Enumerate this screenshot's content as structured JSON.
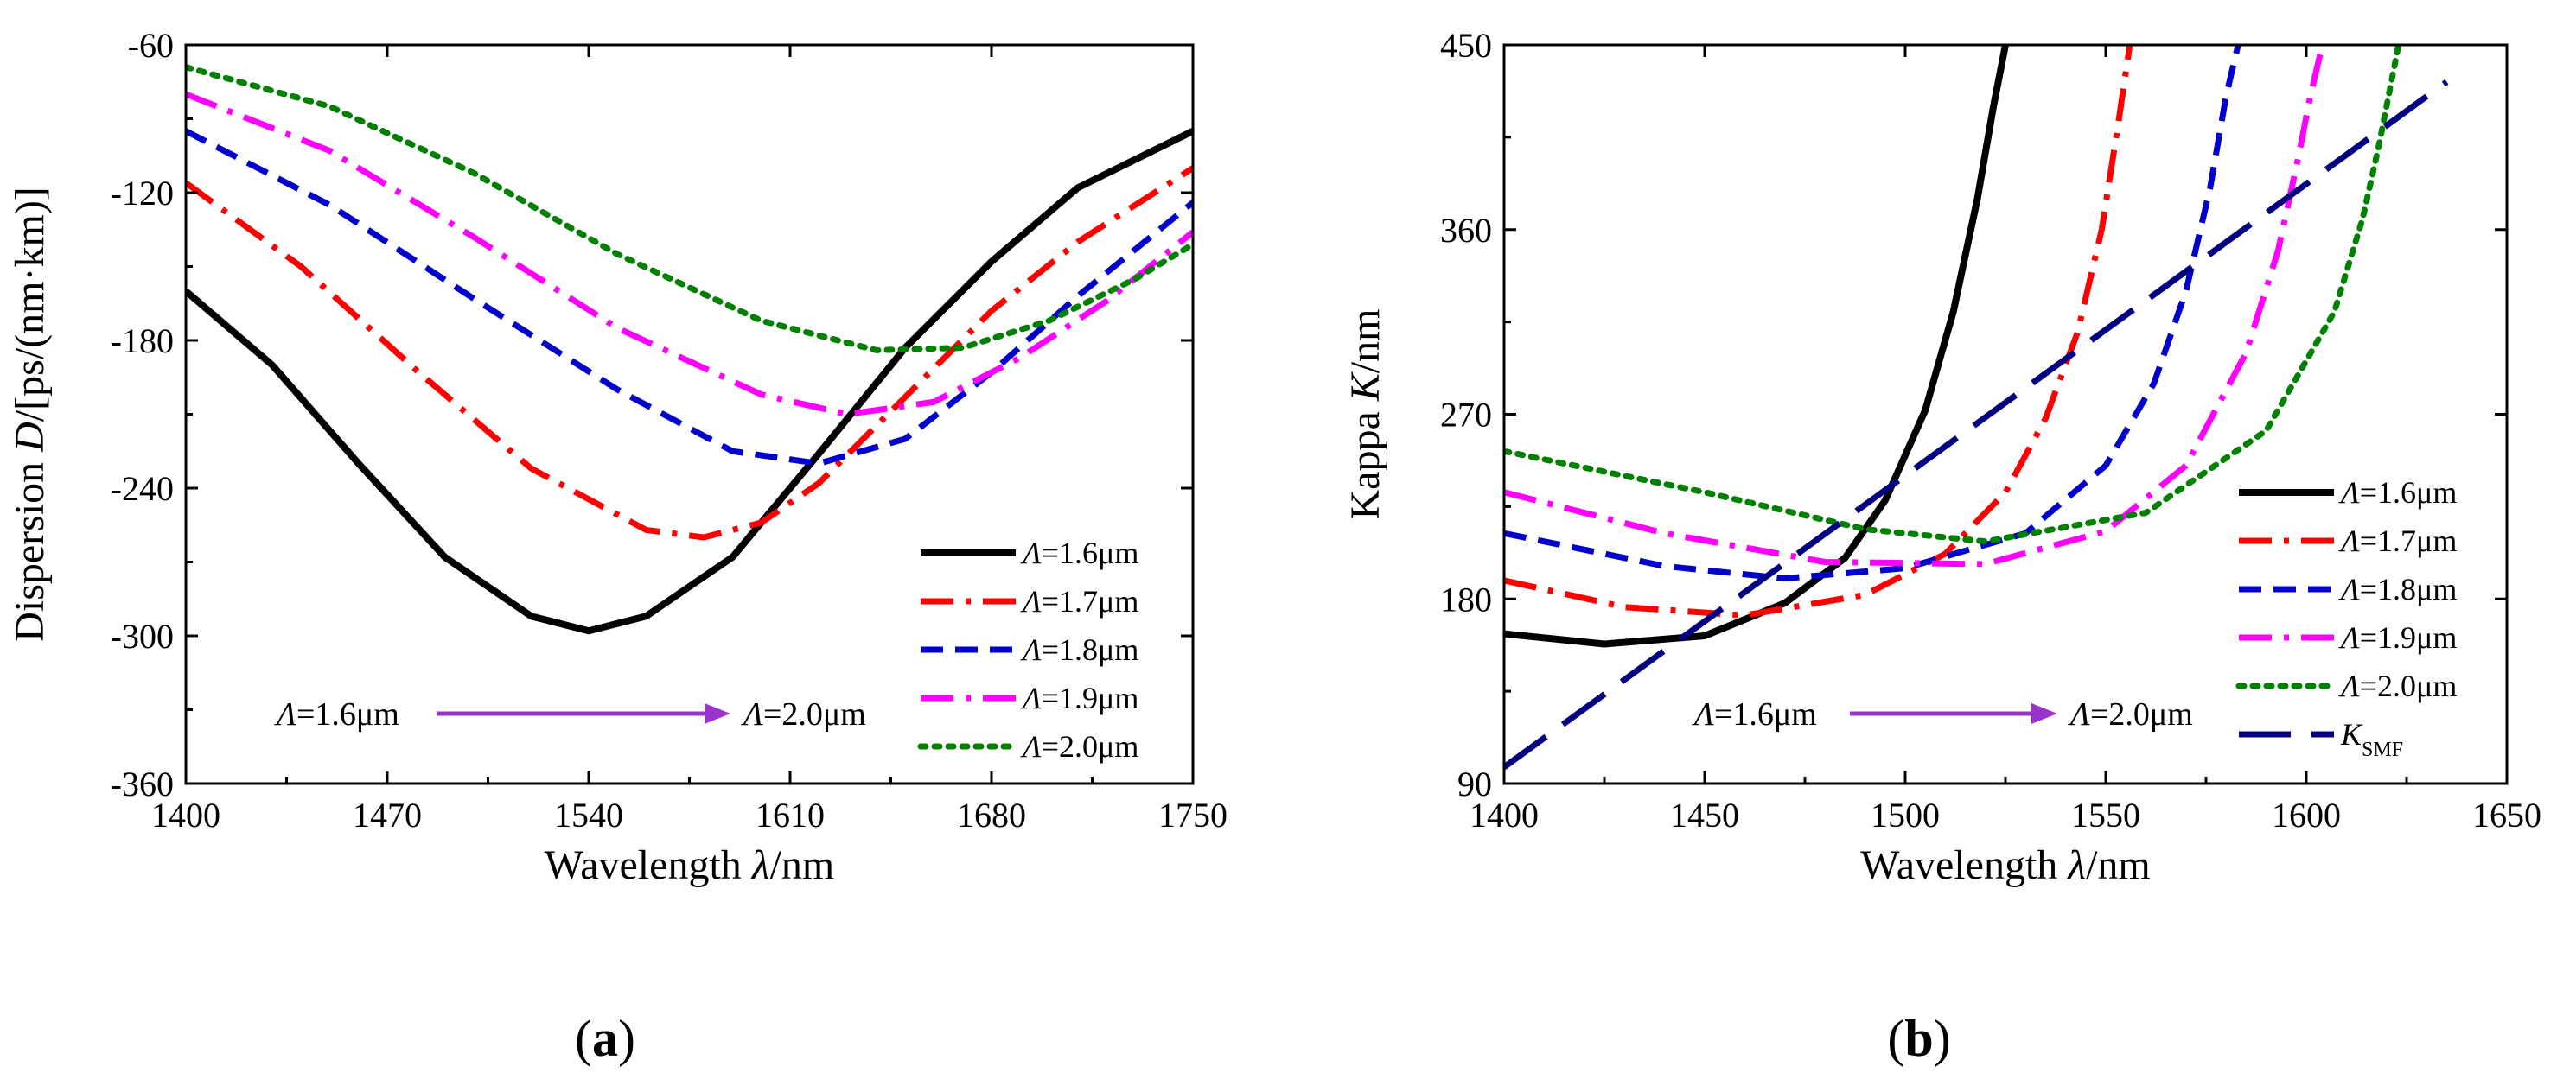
{
  "chart_data": [
    {
      "type": "line",
      "panel_label": "(a)",
      "xlabel": "Wavelength λ/nm",
      "ylabel": "Dispersion D/[ps/(nm·km)]",
      "xlim": [
        1400,
        1750
      ],
      "ylim": [
        -360,
        -60
      ],
      "xticks": [
        1400,
        1470,
        1540,
        1610,
        1680,
        1750
      ],
      "yticks": [
        -360,
        -300,
        -240,
        -180,
        -120,
        -60
      ],
      "legend_position": "bottom-right",
      "annotation": {
        "from": "Λ=1.6μm",
        "to": "Λ=2.0μm",
        "arrow_color": "#9933cc"
      },
      "series": [
        {
          "name": "Λ=1.6μm",
          "color": "#000000",
          "dash": "solid",
          "x": [
            1400,
            1430,
            1460,
            1490,
            1520,
            1540,
            1560,
            1590,
            1620,
            1650,
            1680,
            1710,
            1750
          ],
          "y": [
            -160,
            -190,
            -230,
            -268,
            -292,
            -298,
            -292,
            -268,
            -226,
            -183,
            -148,
            -118,
            -95
          ]
        },
        {
          "name": "Λ=1.7μm",
          "color": "#ff0000",
          "dash": "dashdot",
          "x": [
            1400,
            1440,
            1480,
            1520,
            1560,
            1580,
            1600,
            1620,
            1650,
            1680,
            1710,
            1750
          ],
          "y": [
            -116,
            -150,
            -192,
            -232,
            -257,
            -260,
            -254,
            -238,
            -203,
            -168,
            -140,
            -110
          ]
        },
        {
          "name": "Λ=1.8μm",
          "color": "#0000cc",
          "dash": "dash",
          "x": [
            1400,
            1450,
            1500,
            1550,
            1590,
            1620,
            1650,
            1680,
            1710,
            1750
          ],
          "y": [
            -95,
            -125,
            -163,
            -200,
            -225,
            -230,
            -220,
            -193,
            -162,
            -124
          ]
        },
        {
          "name": "Λ=1.9μm",
          "color": "#ff00ff",
          "dash": "dashdot",
          "x": [
            1400,
            1450,
            1500,
            1550,
            1600,
            1630,
            1660,
            1690,
            1720,
            1750
          ],
          "y": [
            -80,
            -103,
            -138,
            -175,
            -202,
            -210,
            -205,
            -187,
            -164,
            -136
          ]
        },
        {
          "name": "Λ=2.0μm",
          "color": "#008000",
          "dash": "dot",
          "x": [
            1400,
            1450,
            1500,
            1550,
            1600,
            1640,
            1670,
            1700,
            1730,
            1750
          ],
          "y": [
            -69,
            -85,
            -112,
            -145,
            -172,
            -184,
            -183,
            -172,
            -155,
            -141
          ]
        }
      ]
    },
    {
      "type": "line",
      "panel_label": "(b)",
      "xlabel": "Wavelength λ/nm",
      "ylabel": "Kappa K/nm",
      "xlim": [
        1400,
        1650
      ],
      "ylim": [
        90,
        450
      ],
      "xticks": [
        1400,
        1450,
        1500,
        1550,
        1600,
        1650
      ],
      "yticks": [
        90,
        180,
        270,
        360,
        450
      ],
      "legend_position": "bottom-right",
      "annotation": {
        "from": "Λ=1.6μm",
        "to": "Λ=2.0μm",
        "arrow_color": "#9933cc"
      },
      "series": [
        {
          "name": "Λ=1.6μm",
          "color": "#000000",
          "dash": "solid",
          "x": [
            1400,
            1425,
            1450,
            1470,
            1485,
            1495,
            1505,
            1512,
            1518,
            1522,
            1525
          ],
          "y": [
            163,
            158,
            162,
            178,
            200,
            228,
            272,
            320,
            375,
            420,
            450
          ]
        },
        {
          "name": "Λ=1.7μm",
          "color": "#ff0000",
          "dash": "dashdot",
          "x": [
            1400,
            1430,
            1460,
            1490,
            1510,
            1525,
            1535,
            1543,
            1549,
            1553,
            1556
          ],
          "y": [
            189,
            176,
            172,
            182,
            202,
            232,
            268,
            310,
            360,
            410,
            450
          ]
        },
        {
          "name": "Λ=1.8μm",
          "color": "#0000cc",
          "dash": "dash",
          "x": [
            1400,
            1440,
            1470,
            1500,
            1530,
            1550,
            1562,
            1570,
            1576,
            1580,
            1583
          ],
          "y": [
            212,
            196,
            190,
            195,
            212,
            245,
            285,
            330,
            380,
            425,
            450
          ]
        },
        {
          "name": "Λ=1.9μm",
          "color": "#ff00ff",
          "dash": "dashdot",
          "x": [
            1400,
            1440,
            1480,
            1520,
            1550,
            1570,
            1585,
            1593,
            1598,
            1601,
            1604
          ],
          "y": [
            232,
            212,
            198,
            197,
            213,
            245,
            300,
            350,
            395,
            425,
            450
          ]
        },
        {
          "name": "Λ=2.0μm",
          "color": "#008000",
          "dash": "dot",
          "x": [
            1400,
            1450,
            1490,
            1520,
            1560,
            1590,
            1607,
            1614,
            1618,
            1621,
            1623
          ],
          "y": [
            252,
            232,
            214,
            208,
            222,
            262,
            320,
            365,
            400,
            430,
            450
          ]
        },
        {
          "name": "K_SMF",
          "color": "#000080",
          "dash": "longdash",
          "x": [
            1400,
            1635
          ],
          "y": [
            98,
            432
          ]
        }
      ]
    }
  ]
}
